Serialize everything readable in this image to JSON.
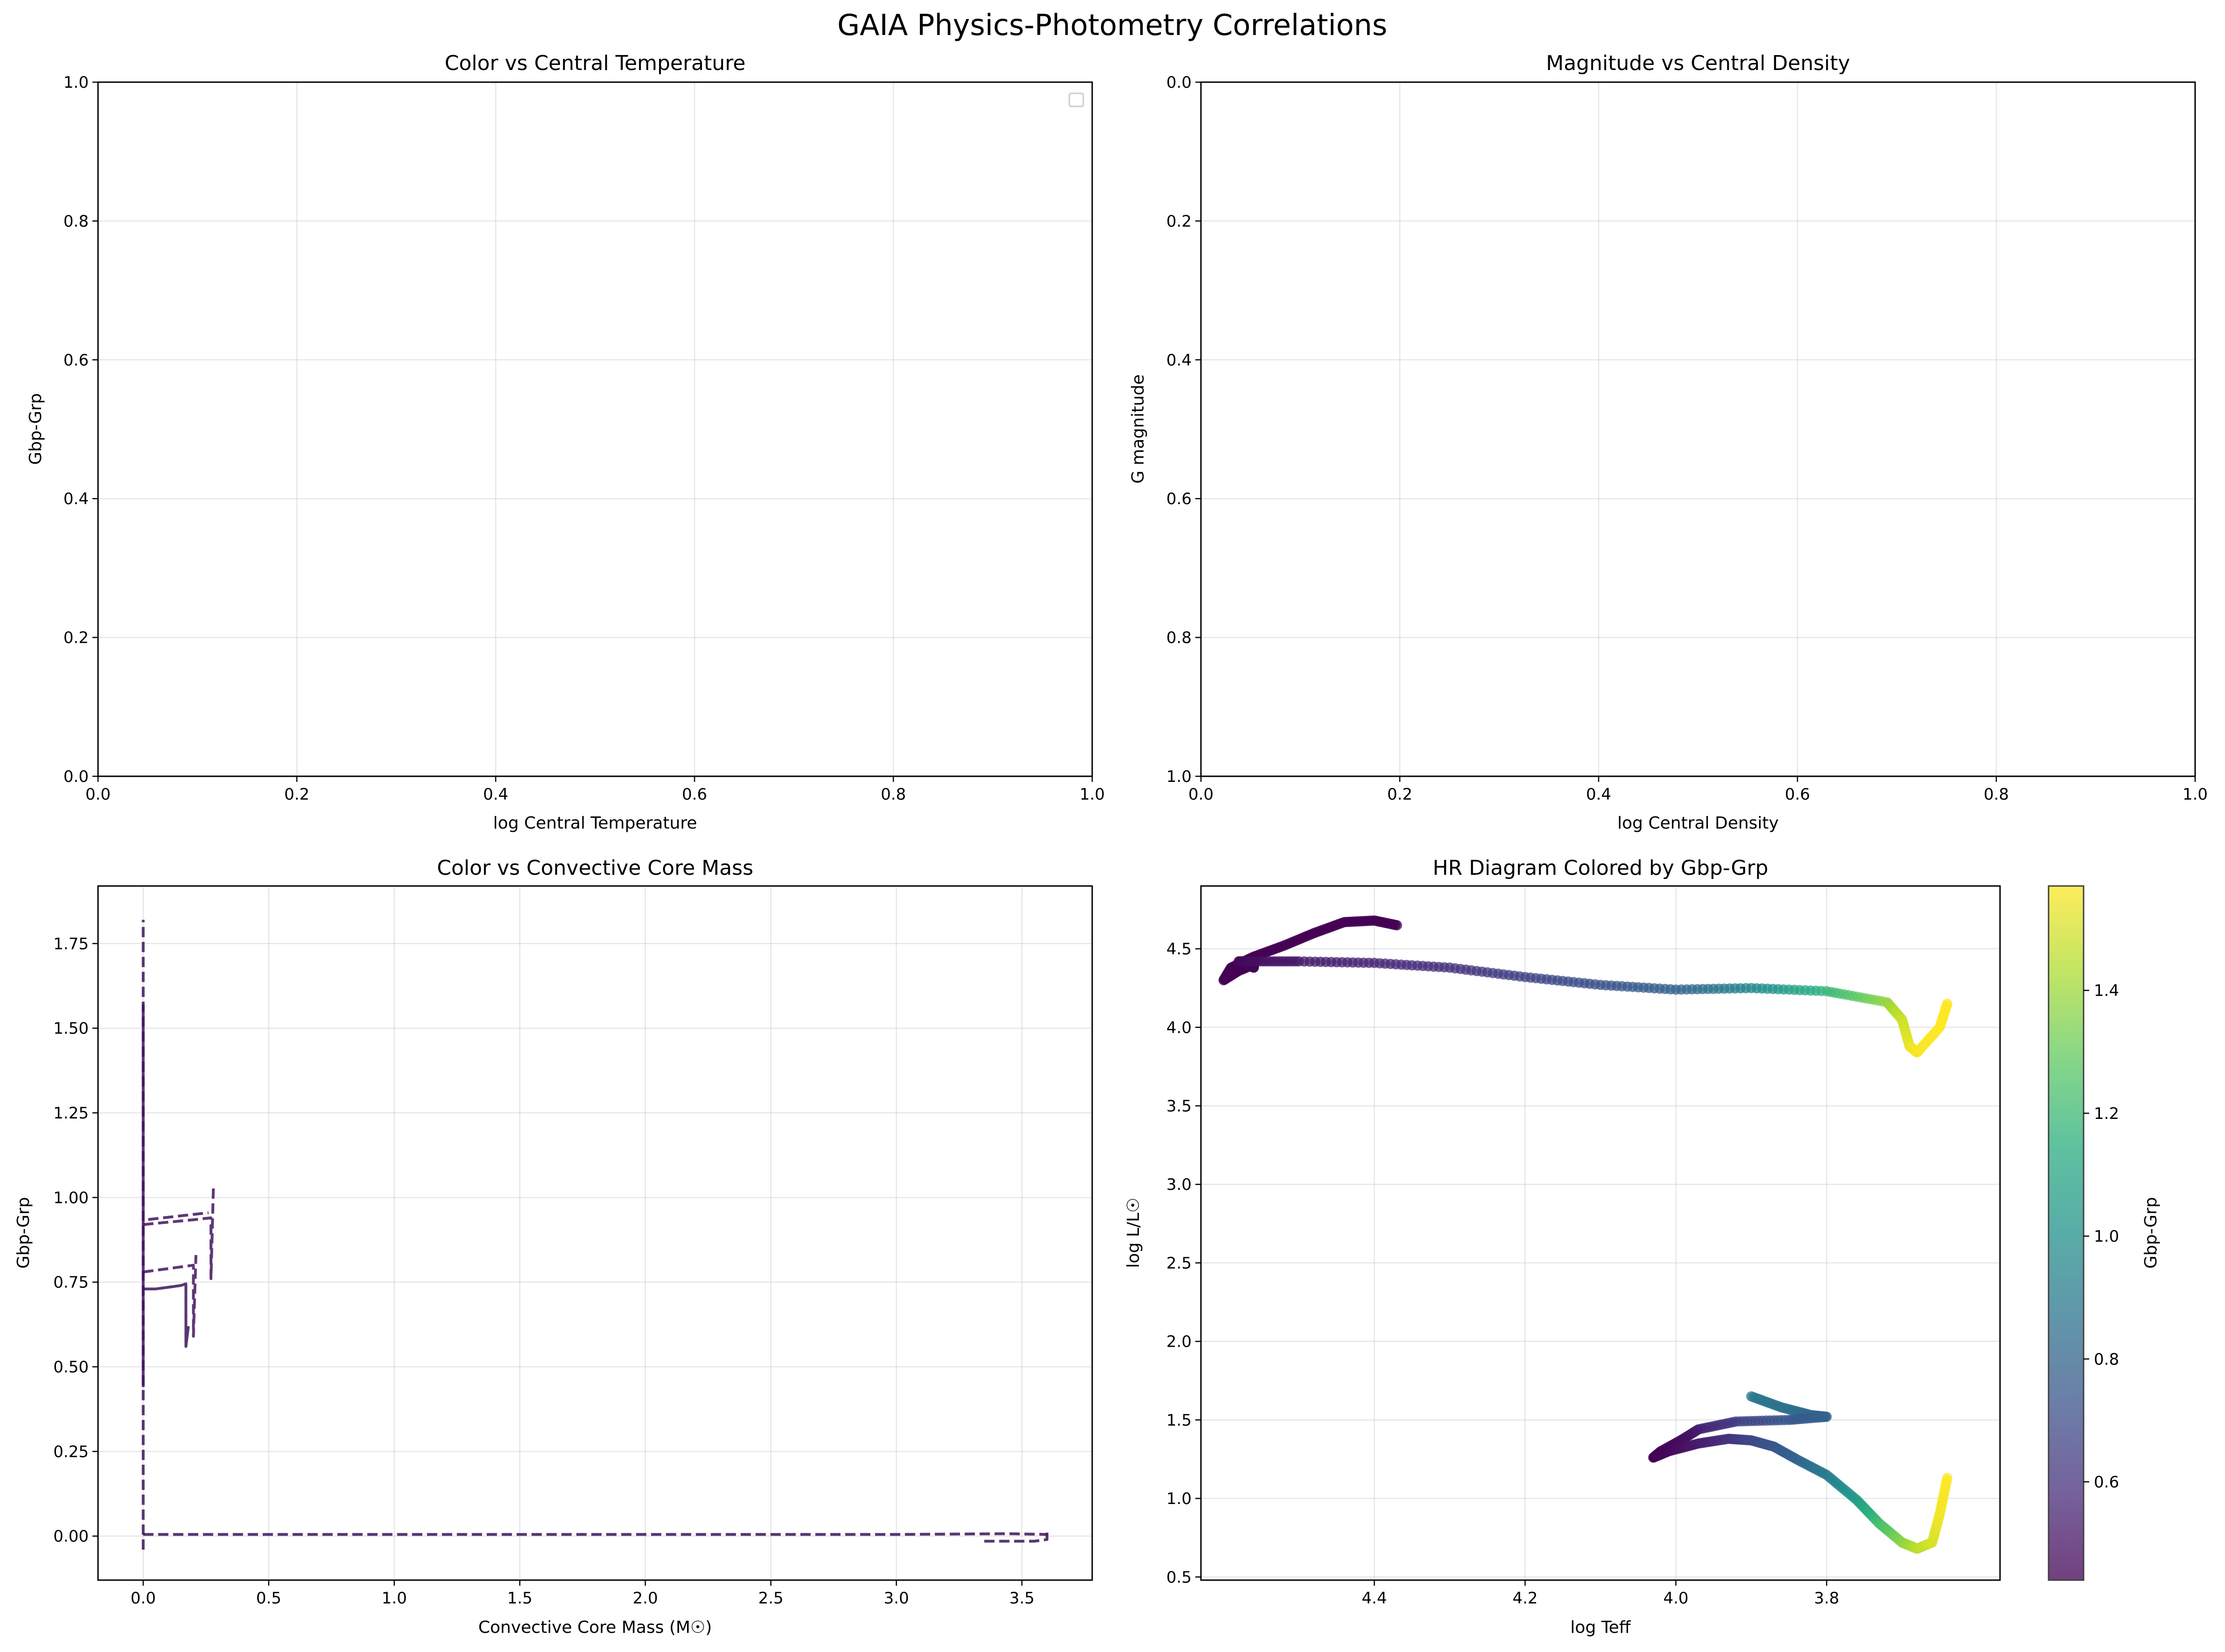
{
  "figure": {
    "suptitle": "GAIA Physics-Photometry Correlations"
  },
  "chart_data": [
    {
      "type": "line",
      "title": "Color vs Central Temperature",
      "xlabel": "log Central Temperature",
      "ylabel": "Gbp-Grp",
      "xlim": [
        0,
        1
      ],
      "ylim": [
        0,
        1
      ],
      "xticks": [
        "0.0",
        "0.2",
        "0.4",
        "0.6",
        "0.8",
        "1.0"
      ],
      "yticks": [
        "0.0",
        "0.2",
        "0.4",
        "0.6",
        "0.8",
        "1.0"
      ],
      "grid": true,
      "legend": {
        "placement": "upper right",
        "entries": []
      },
      "series": []
    },
    {
      "type": "line",
      "title": "Magnitude vs Central Density",
      "xlabel": "log Central Density",
      "ylabel": "G magnitude",
      "xlim": [
        0,
        1
      ],
      "ylim": [
        1,
        0
      ],
      "y_inverted": true,
      "xticks": [
        "0.0",
        "0.2",
        "0.4",
        "0.6",
        "0.8",
        "1.0"
      ],
      "yticks": [
        "0.0",
        "0.2",
        "0.4",
        "0.6",
        "0.8",
        "1.0"
      ],
      "grid": true,
      "series": []
    },
    {
      "type": "line",
      "title": "Color vs Convective Core Mass",
      "xlabel": "Convective Core Mass (M☉)",
      "ylabel": "Gbp-Grp",
      "xlim": [
        -0.18,
        3.78
      ],
      "ylim": [
        -0.13,
        1.92
      ],
      "xticks": [
        "0.0",
        "0.5",
        "1.0",
        "1.5",
        "2.0",
        "2.5",
        "3.0",
        "3.5"
      ],
      "yticks": [
        "0.00",
        "0.25",
        "0.50",
        "0.75",
        "1.00",
        "1.25",
        "1.50",
        "1.75"
      ],
      "grid": true,
      "series": [
        {
          "style": "dashed",
          "color": "#3b1559",
          "x": [
            0.0,
            0.0,
            0.0,
            0.0,
            0.0,
            0.0,
            0.0
          ],
          "y": [
            -0.04,
            0.3,
            0.6,
            0.9,
            1.2,
            1.5,
            1.82
          ]
        },
        {
          "style": "dashed",
          "color": "#3b1559",
          "x": [
            0.0,
            1.0,
            2.0,
            3.0,
            3.45,
            3.6
          ],
          "y": [
            0.005,
            0.005,
            0.005,
            0.005,
            0.007,
            0.005
          ]
        },
        {
          "style": "dashed",
          "color": "#3b1559",
          "x": [
            3.35,
            3.45,
            3.55,
            3.6,
            3.6
          ],
          "y": [
            -0.015,
            -0.015,
            -0.015,
            -0.01,
            0.01
          ]
        },
        {
          "style": "solid",
          "color": "#44145e",
          "x": [
            0.0,
            0.0,
            0.0,
            0.0,
            0.0,
            0.0
          ],
          "y": [
            0.44,
            0.7,
            0.9,
            1.1,
            1.3,
            1.57
          ]
        },
        {
          "style": "solid",
          "color": "#3b1559",
          "x": [
            0.0,
            0.05,
            0.1,
            0.15,
            0.17,
            0.17,
            0.18
          ],
          "y": [
            0.73,
            0.73,
            0.735,
            0.74,
            0.745,
            0.56,
            0.62
          ]
        },
        {
          "style": "dashed",
          "color": "#44145e",
          "x": [
            0.0,
            0.05,
            0.1,
            0.15,
            0.2,
            0.2,
            0.21
          ],
          "y": [
            0.78,
            0.785,
            0.79,
            0.795,
            0.8,
            0.59,
            0.83
          ]
        },
        {
          "style": "dashed",
          "color": "#44145e",
          "x": [
            0.0,
            0.07,
            0.14,
            0.21,
            0.27,
            0.27,
            0.28
          ],
          "y": [
            0.92,
            0.925,
            0.93,
            0.935,
            0.94,
            0.76,
            1.04
          ]
        },
        {
          "style": "dashed",
          "color": "#3b1559",
          "x": [
            0.02,
            0.08,
            0.14,
            0.2,
            0.26
          ],
          "y": [
            0.935,
            0.94,
            0.945,
            0.95,
            0.955
          ]
        }
      ]
    },
    {
      "type": "scatter",
      "title": "HR Diagram Colored by Gbp-Grp",
      "xlabel": "log Teff",
      "ylabel": "log L/L☉",
      "xlim": [
        4.63,
        3.57
      ],
      "x_inverted": true,
      "ylim": [
        0.48,
        4.9
      ],
      "xticks": [
        "4.4",
        "4.2",
        "4.0",
        "3.8"
      ],
      "yticks": [
        "0.5",
        "1.0",
        "1.5",
        "2.0",
        "2.5",
        "3.0",
        "3.5",
        "4.0",
        "4.5"
      ],
      "grid": true,
      "colorbar": {
        "label": "Gbp-Grp",
        "range": [
          0.44,
          1.57
        ],
        "ticks": [
          "0.6",
          "0.8",
          "1.0",
          "1.2",
          "1.4"
        ],
        "colormap": "viridis"
      },
      "tracks": [
        {
          "name": "track-upper",
          "teff": [
            4.37,
            4.4,
            4.44,
            4.48,
            4.52,
            4.56,
            4.59,
            4.6,
            4.58,
            4.56,
            4.56,
            4.58,
            4.56,
            4.5,
            4.4,
            4.3,
            4.2,
            4.1,
            4.0,
            3.9,
            3.8,
            3.72,
            3.7,
            3.69,
            3.68,
            3.65,
            3.64
          ],
          "logl": [
            4.65,
            4.68,
            4.67,
            4.6,
            4.52,
            4.45,
            4.38,
            4.3,
            4.36,
            4.4,
            4.38,
            4.42,
            4.42,
            4.42,
            4.41,
            4.38,
            4.32,
            4.27,
            4.24,
            4.25,
            4.23,
            4.16,
            4.05,
            3.88,
            3.84,
            4.0,
            4.15
          ],
          "color": [
            0.44,
            0.44,
            0.44,
            0.44,
            0.44,
            0.44,
            0.44,
            0.44,
            0.44,
            0.44,
            0.45,
            0.46,
            0.48,
            0.52,
            0.56,
            0.6,
            0.66,
            0.72,
            0.8,
            0.95,
            1.18,
            1.38,
            1.48,
            1.53,
            1.56,
            1.57,
            1.57
          ]
        },
        {
          "name": "track-lower",
          "teff": [
            3.9,
            3.86,
            3.82,
            3.8,
            3.85,
            3.92,
            3.97,
            3.99,
            4.02,
            4.03,
            4.01,
            3.97,
            3.93,
            3.9,
            3.87,
            3.84,
            3.8,
            3.76,
            3.73,
            3.7,
            3.68,
            3.66,
            3.65,
            3.64
          ],
          "logl": [
            1.65,
            1.58,
            1.53,
            1.52,
            1.5,
            1.49,
            1.44,
            1.38,
            1.3,
            1.26,
            1.3,
            1.35,
            1.38,
            1.37,
            1.33,
            1.25,
            1.15,
            0.99,
            0.84,
            0.72,
            0.68,
            0.72,
            0.9,
            1.13
          ],
          "color": [
            0.9,
            0.86,
            0.82,
            0.8,
            0.75,
            0.65,
            0.55,
            0.49,
            0.45,
            0.44,
            0.46,
            0.52,
            0.6,
            0.68,
            0.74,
            0.8,
            0.9,
            1.05,
            1.22,
            1.36,
            1.45,
            1.5,
            1.55,
            1.57
          ]
        }
      ]
    }
  ]
}
